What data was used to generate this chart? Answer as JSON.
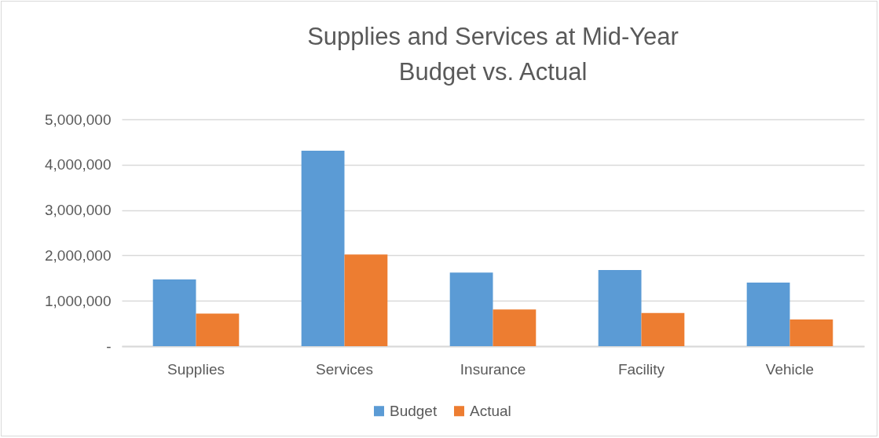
{
  "chart_data": {
    "type": "bar",
    "title": [
      "Supplies and Services at Mid-Year",
      "Budget vs. Actual"
    ],
    "categories": [
      "Supplies",
      "Services",
      "Insurance",
      "Facility",
      "Vehicle"
    ],
    "series": [
      {
        "name": "Budget",
        "color": "#5b9bd5",
        "values": [
          1470000,
          4310000,
          1620000,
          1680000,
          1400000
        ]
      },
      {
        "name": "Actual",
        "color": "#ed7d31",
        "values": [
          720000,
          2020000,
          810000,
          730000,
          590000
        ]
      }
    ],
    "ylim": [
      0,
      5000000
    ],
    "yticks": [
      {
        "value": 0,
        "label": "-"
      },
      {
        "value": 1000000,
        "label": "1,000,000"
      },
      {
        "value": 2000000,
        "label": "2,000,000"
      },
      {
        "value": 3000000,
        "label": "3,000,000"
      },
      {
        "value": 4000000,
        "label": "4,000,000"
      },
      {
        "value": 5000000,
        "label": "5,000,000"
      }
    ],
    "grid": "y",
    "legend": "bottom"
  }
}
